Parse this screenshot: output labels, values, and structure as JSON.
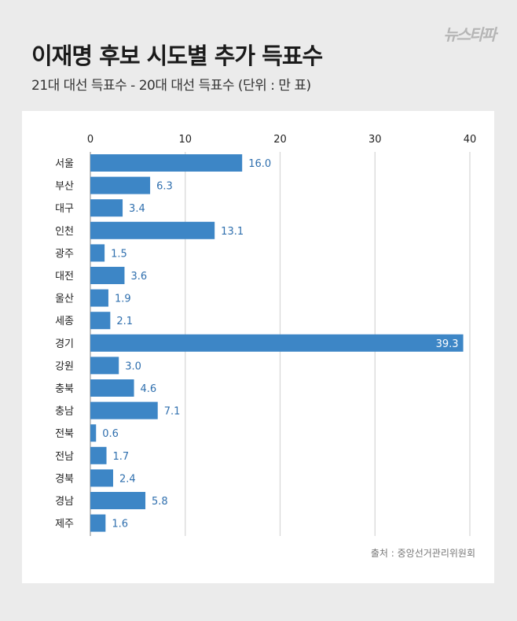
{
  "header": {
    "title": "이재명 후보 시도별 추가 득표수",
    "subtitle": "21대 대선 득표수 - 20대 대선 득표수 (단위 : 만 표)",
    "logo_text": "뉴스타파"
  },
  "footer": {
    "source": "출처 : 중앙선거관리위원회"
  },
  "colors": {
    "bar": "#3d86c6",
    "value_text": "#2f6fae",
    "inside_value_text": "#ffffff",
    "grid": "#d6d6d6"
  },
  "chart_data": {
    "type": "bar",
    "orientation": "horizontal",
    "title": "",
    "xlabel": "",
    "ylabel": "",
    "xlim": [
      0,
      40
    ],
    "xticks": [
      0,
      10,
      20,
      30,
      40
    ],
    "tick_labels": [
      "0",
      "10",
      "20",
      "30",
      "40"
    ],
    "grid": true,
    "categories": [
      "서울",
      "부산",
      "대구",
      "인천",
      "광주",
      "대전",
      "울산",
      "세종",
      "경기",
      "강원",
      "충북",
      "충남",
      "전북",
      "전남",
      "경북",
      "경남",
      "제주"
    ],
    "values": [
      16.0,
      6.3,
      3.4,
      13.1,
      1.5,
      3.6,
      1.9,
      2.1,
      39.3,
      3.0,
      4.6,
      7.1,
      0.6,
      1.7,
      2.4,
      5.8,
      1.6
    ],
    "value_labels": [
      "16.0",
      "6.3",
      "3.4",
      "13.1",
      "1.5",
      "3.6",
      "1.9",
      "2.1",
      "39.3",
      "3.0",
      "4.6",
      "7.1",
      "0.6",
      "1.7",
      "2.4",
      "5.8",
      "1.6"
    ]
  }
}
